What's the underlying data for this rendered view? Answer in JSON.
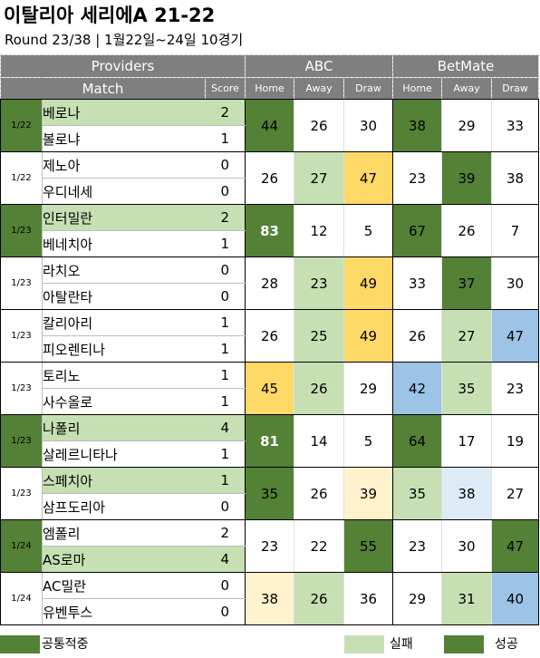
{
  "title": "이탈리아 세리에A 21-22",
  "subtitle": "Round 23/38 | 1월22일~24일 10경기",
  "header": {
    "providers": "Providers",
    "match": "Match",
    "score": "Score",
    "abc": "ABC",
    "betmate": "BetMate",
    "home": "Home",
    "away": "Away",
    "draw": "Draw"
  },
  "matches": [
    {
      "date": "1/22",
      "home": "베로나",
      "away": "볼로냐",
      "hs": "2",
      "as": "1",
      "abc": [
        "44",
        "26",
        "30"
      ],
      "bm": [
        "38",
        "29",
        "33"
      ]
    },
    {
      "date": "1/22",
      "home": "제노아",
      "away": "우디네세",
      "hs": "0",
      "as": "0",
      "abc": [
        "26",
        "27",
        "47"
      ],
      "bm": [
        "23",
        "39",
        "38"
      ]
    },
    {
      "date": "1/23",
      "home": "인터밀란",
      "away": "베네치아",
      "hs": "2",
      "as": "1",
      "abc": [
        "83",
        "12",
        "5"
      ],
      "bm": [
        "67",
        "26",
        "7"
      ]
    },
    {
      "date": "1/23",
      "home": "라치오",
      "away": "아탈란타",
      "hs": "0",
      "as": "0",
      "abc": [
        "28",
        "23",
        "49"
      ],
      "bm": [
        "33",
        "37",
        "30"
      ]
    },
    {
      "date": "1/23",
      "home": "칼리아리",
      "away": "피오렌티나",
      "hs": "1",
      "as": "1",
      "abc": [
        "26",
        "25",
        "49"
      ],
      "bm": [
        "26",
        "27",
        "47"
      ]
    },
    {
      "date": "1/23",
      "home": "토리노",
      "away": "사수올로",
      "hs": "1",
      "as": "1",
      "abc": [
        "45",
        "26",
        "29"
      ],
      "bm": [
        "42",
        "35",
        "23"
      ]
    },
    {
      "date": "1/23",
      "home": "나폴리",
      "away": "살레르니타나",
      "hs": "4",
      "as": "1",
      "abc": [
        "81",
        "14",
        "5"
      ],
      "bm": [
        "64",
        "17",
        "19"
      ]
    },
    {
      "date": "1/23",
      "home": "스페치아",
      "away": "삼프도리아",
      "hs": "1",
      "as": "0",
      "abc": [
        "35",
        "26",
        "39"
      ],
      "bm": [
        "35",
        "38",
        "27"
      ]
    },
    {
      "date": "1/24",
      "home": "엠폴리",
      "away": "AS로마",
      "hs": "2",
      "as": "4",
      "abc": [
        "23",
        "22",
        "55"
      ],
      "bm": [
        "23",
        "30",
        "47"
      ]
    },
    {
      "date": "1/24",
      "home": "AC밀란",
      "away": "유벤투스",
      "hs": "0",
      "as": "0",
      "abc": [
        "38",
        "26",
        "36"
      ],
      "bm": [
        "29",
        "31",
        "40"
      ]
    }
  ],
  "legend": {
    "common": "공통적중",
    "fail": "실패",
    "success": "성공"
  },
  "colors": {
    "header_gray": "#7f7f7f",
    "dark_green": "#538135",
    "light_green": "#c6e0b4",
    "gold": "#ffd966",
    "cream": "#fff2cc",
    "blue": "#9dc3e6",
    "pale_blue": "#ddebf7"
  }
}
